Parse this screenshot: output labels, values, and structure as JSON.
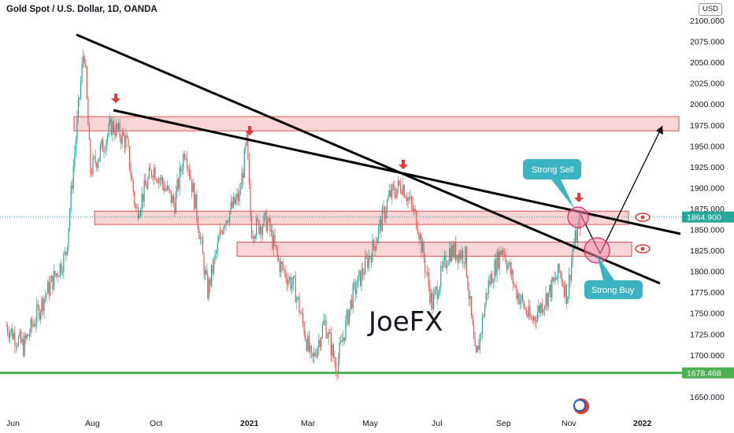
{
  "header": {
    "title": "Gold Spot / U.S. Dollar, 1D, OANDA",
    "currency": "USD"
  },
  "watermark": "JoeFX",
  "colors": {
    "up": "#26a69a",
    "down": "#ef5350",
    "zone_fill": "#f8c7c7",
    "zone_stroke": "#d32f2f",
    "support": "#4caf50",
    "price_tag": "#26a69a",
    "bubble": "#3bb3c3",
    "trend": "#000000"
  },
  "chart_data": {
    "type": "candlestick",
    "title": "Gold Spot / U.S. Dollar, 1D, OANDA",
    "y_axis": {
      "ticks": [
        "2100.000",
        "2075.000",
        "2050.000",
        "2025.000",
        "2000.000",
        "1975.000",
        "1950.000",
        "1925.000",
        "1900.000",
        "1875.000",
        "1850.000",
        "1825.000",
        "1800.000",
        "1775.000",
        "1750.000",
        "1725.000",
        "1700.000",
        "1650.000"
      ],
      "range": [
        1640,
        2110
      ]
    },
    "x_axis": {
      "ticks": [
        {
          "label": "Jun",
          "bold": false
        },
        {
          "label": "Aug",
          "bold": false
        },
        {
          "label": "Oct",
          "bold": false
        },
        {
          "label": "2021",
          "bold": true
        },
        {
          "label": "Mar",
          "bold": false
        },
        {
          "label": "May",
          "bold": false
        },
        {
          "label": "Jul",
          "bold": false
        },
        {
          "label": "Sep",
          "bold": false
        },
        {
          "label": "Nov",
          "bold": false
        },
        {
          "label": "2022",
          "bold": true
        }
      ]
    },
    "price_path": [
      [
        "2020-05-25",
        1735
      ],
      [
        "2020-06-10",
        1710
      ],
      [
        "2020-06-30",
        1770
      ],
      [
        "2020-07-20",
        1820
      ],
      [
        "2020-07-28",
        1940
      ],
      [
        "2020-08-06",
        2070
      ],
      [
        "2020-08-12",
        1920
      ],
      [
        "2020-08-20",
        1940
      ],
      [
        "2020-09-01",
        1975
      ],
      [
        "2020-09-15",
        1955
      ],
      [
        "2020-09-24",
        1870
      ],
      [
        "2020-10-10",
        1925
      ],
      [
        "2020-10-30",
        1880
      ],
      [
        "2020-11-09",
        1950
      ],
      [
        "2020-11-20",
        1870
      ],
      [
        "2020-11-30",
        1775
      ],
      [
        "2020-12-15",
        1860
      ],
      [
        "2020-12-30",
        1890
      ],
      [
        "2021-01-06",
        1955
      ],
      [
        "2021-01-10",
        1850
      ],
      [
        "2021-01-25",
        1860
      ],
      [
        "2021-02-05",
        1810
      ],
      [
        "2021-02-20",
        1780
      ],
      [
        "2021-03-08",
        1690
      ],
      [
        "2021-03-20",
        1740
      ],
      [
        "2021-03-31",
        1685
      ],
      [
        "2021-04-15",
        1770
      ],
      [
        "2021-05-05",
        1830
      ],
      [
        "2021-05-20",
        1890
      ],
      [
        "2021-06-01",
        1905
      ],
      [
        "2021-06-15",
        1860
      ],
      [
        "2021-06-29",
        1760
      ],
      [
        "2021-07-15",
        1825
      ],
      [
        "2021-07-30",
        1820
      ],
      [
        "2021-08-09",
        1690
      ],
      [
        "2021-08-20",
        1780
      ],
      [
        "2021-09-03",
        1830
      ],
      [
        "2021-09-15",
        1780
      ],
      [
        "2021-09-30",
        1740
      ],
      [
        "2021-10-15",
        1770
      ],
      [
        "2021-10-27",
        1800
      ],
      [
        "2021-11-03",
        1770
      ],
      [
        "2021-11-08",
        1825
      ],
      [
        "2021-11-16",
        1865
      ]
    ],
    "resistance_zones": [
      [
        1968,
        1985
      ],
      [
        1856,
        1872
      ],
      [
        1818,
        1835
      ]
    ],
    "support_line": 1678.468,
    "current_price": "1864.900",
    "support_label": "1678.468",
    "annotations": {
      "sell": "Strong Sell",
      "buy": "Strong Buy"
    }
  }
}
